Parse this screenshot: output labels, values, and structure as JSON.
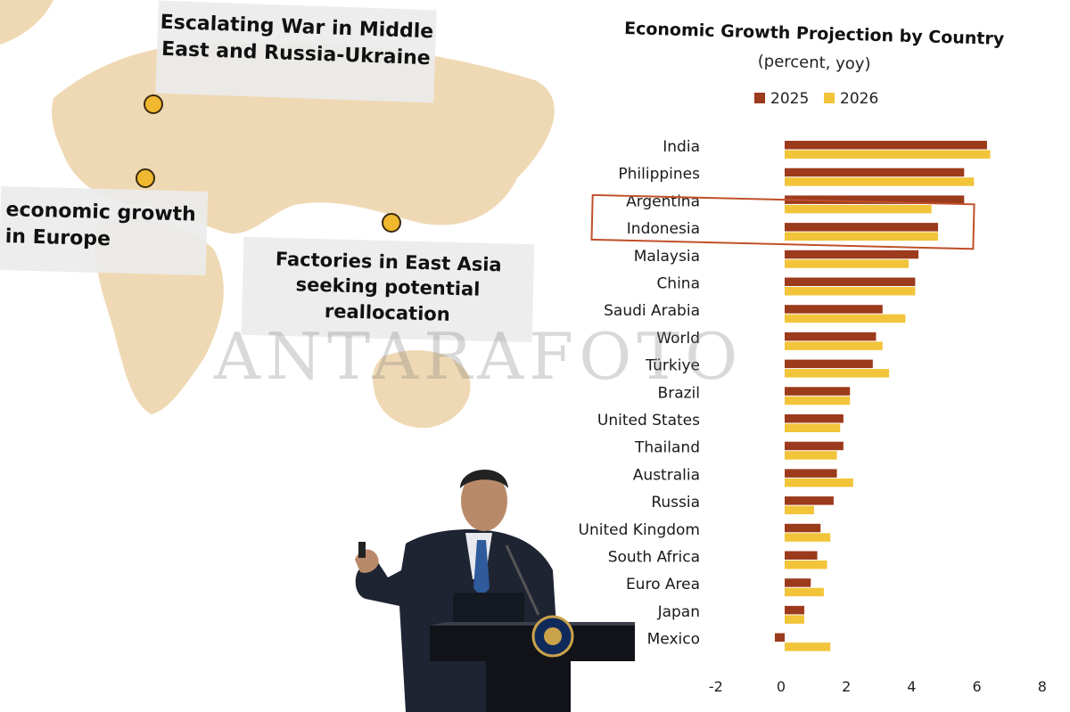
{
  "callouts": {
    "war": {
      "line1": "Escalating War in Middle",
      "line2": "East and Russia-Ukraine"
    },
    "europe": {
      "line1": "economic growth",
      "line2": "in Europe"
    },
    "factories": {
      "line1": "Factories in East Asia",
      "line2": "seeking potential",
      "line3": "reallocation"
    }
  },
  "watermark": "ANTARAFOTO",
  "colors": {
    "series_2025": "#9c3a1c",
    "series_2026": "#f2c43a",
    "highlight": "#c0502a",
    "map_land": "#efd9b4",
    "map_marker": "#f0b82e"
  },
  "chart_data": {
    "type": "bar",
    "orientation": "horizontal",
    "title": "Economic Growth Projection by Country",
    "subtitle": "(percent, yoy)",
    "categories": [
      "India",
      "Philippines",
      "Argentina",
      "Indonesia",
      "Malaysia",
      "China",
      "Saudi Arabia",
      "World",
      "Türkiye",
      "Brazil",
      "United States",
      "Thailand",
      "Australia",
      "Russia",
      "United Kingdom",
      "South Africa",
      "Euro Area",
      "Japan",
      "Mexico"
    ],
    "series": [
      {
        "name": "2025",
        "values": [
          6.2,
          5.5,
          5.5,
          4.7,
          4.1,
          4.0,
          3.0,
          2.8,
          2.7,
          2.0,
          1.8,
          1.8,
          1.6,
          1.5,
          1.1,
          1.0,
          0.8,
          0.6,
          -0.3
        ]
      },
      {
        "name": "2026",
        "values": [
          6.3,
          5.8,
          4.5,
          4.7,
          3.8,
          4.0,
          3.7,
          3.0,
          3.2,
          2.0,
          1.7,
          1.6,
          2.1,
          0.9,
          1.4,
          1.3,
          1.2,
          0.6,
          1.4
        ]
      }
    ],
    "xlim": [
      -2,
      8
    ],
    "xticks": [
      "-2",
      "0",
      "2",
      "4",
      "6",
      "8"
    ],
    "highlight": "Indonesia",
    "legend": "top",
    "grid": false
  }
}
